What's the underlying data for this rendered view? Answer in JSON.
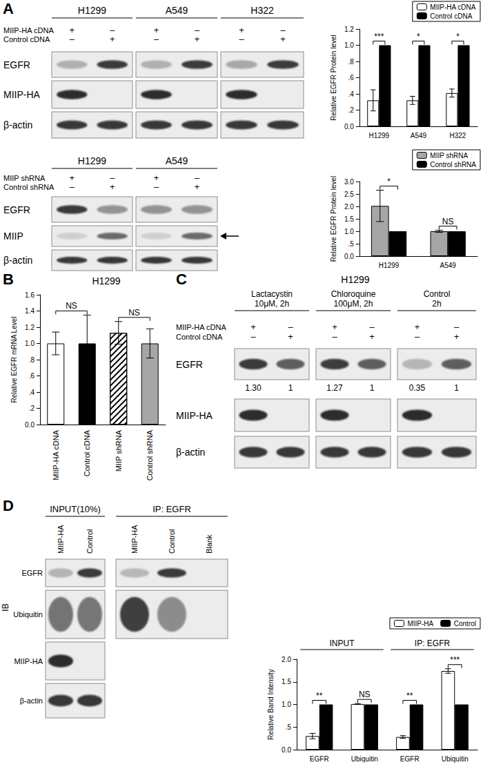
{
  "panel_labels": [
    "A",
    "B",
    "C",
    "D"
  ],
  "chart_data": [
    {
      "type": "bar",
      "categories": [
        "H1299",
        "A549",
        "H322"
      ],
      "series": [
        {
          "name": "MIIP-HA cDNA",
          "color": "#ffffff",
          "values": [
            0.32,
            0.32,
            0.41
          ],
          "errors": [
            0.13,
            0.05,
            0.05
          ]
        },
        {
          "name": "Control cDNA",
          "color": "#000000",
          "values": [
            1,
            1,
            1
          ]
        }
      ],
      "y_label": "Relative EGFR Protein level",
      "ylim": [
        0,
        1.2
      ],
      "yticks": [
        {
          "value": 0,
          "label": "0.0"
        },
        {
          "value": 0.2,
          "label": ".2"
        },
        {
          "value": 0.4,
          "label": ".4"
        },
        {
          "value": 0.6,
          "label": ".6"
        },
        {
          "value": 0.8,
          "label": ".8"
        },
        {
          "value": 1,
          "label": "1.0"
        },
        {
          "value": 1.2,
          "label": "1.2"
        }
      ],
      "grid": false,
      "legend": "upper right",
      "annotations": [
        {
          "category_index": 0,
          "text": "***"
        },
        {
          "category_index": 1,
          "text": "*"
        },
        {
          "category_index": 2,
          "text": "*"
        }
      ]
    },
    {
      "type": "bar",
      "categories": [
        "H1299",
        "A549"
      ],
      "series": [
        {
          "name": "MIIP shRNA",
          "color": "#a6a6a6",
          "values": [
            2.02,
            1.0
          ],
          "errors": [
            0.63,
            0.04
          ]
        },
        {
          "name": "Control shRNA",
          "color": "#000000",
          "values": [
            1,
            1
          ]
        }
      ],
      "y_label": "Relative EGFR Protein level",
      "ylim": [
        0,
        3
      ],
      "yticks": [
        {
          "value": 0,
          "label": "0.0"
        },
        {
          "value": 0.5,
          "label": ".5"
        },
        {
          "value": 1,
          "label": "1.0"
        },
        {
          "value": 1.5,
          "label": "1.5"
        },
        {
          "value": 2,
          "label": "2.0"
        },
        {
          "value": 2.5,
          "label": "2.5"
        },
        {
          "value": 3,
          "label": "3.0"
        }
      ],
      "grid": false,
      "legend": "upper right",
      "annotations": [
        {
          "category_index": 0,
          "text": "*"
        },
        {
          "category_index": 1,
          "text": "NS"
        }
      ]
    },
    {
      "type": "bar",
      "title": "H1299",
      "categories": [
        "MIIP-HA cDNA",
        "Control cDNA",
        "MIIP shRNA",
        "Control shRNA"
      ],
      "values": [
        1.0,
        1.0,
        1.13,
        1.0
      ],
      "errors": [
        0.14,
        0.35,
        0.14,
        0.18
      ],
      "colors": [
        "#ffffff",
        "#000000",
        "#ffffff",
        "#a6a6a6"
      ],
      "y_label": "Relative EGFR mRNA Level",
      "ylim": [
        0,
        1.6
      ],
      "yticks": [
        {
          "value": 0,
          "label": "0.0"
        },
        {
          "value": 0.2,
          "label": ".2"
        },
        {
          "value": 0.4,
          "label": ".4"
        },
        {
          "value": 0.6,
          "label": ".6"
        },
        {
          "value": 0.8,
          "label": ".8"
        },
        {
          "value": 1,
          "label": "1.0"
        },
        {
          "value": 1.2,
          "label": "1.2"
        },
        {
          "value": 1.4,
          "label": "1.4"
        },
        {
          "value": 1.6,
          "label": "1.6"
        }
      ],
      "grid": false,
      "annotations": [
        {
          "span": [
            0,
            1
          ],
          "text": "NS"
        },
        {
          "span": [
            2,
            3
          ],
          "text": "NS"
        }
      ]
    },
    {
      "type": "bar",
      "categories": [
        "EGFR",
        "Ubiquitin",
        "EGFR",
        "Ubiquitin"
      ],
      "groups": [
        {
          "label": "INPUT",
          "span": [
            0,
            1
          ]
        },
        {
          "label": "IP: EGFR",
          "span": [
            2,
            3
          ]
        }
      ],
      "series": [
        {
          "name": "MIIP-HA",
          "color": "#ffffff",
          "values": [
            0.3,
            1.01,
            0.28,
            1.74
          ],
          "errors": [
            0.06,
            0.01,
            0.03,
            0.05
          ]
        },
        {
          "name": "Control",
          "color": "#000000",
          "values": [
            1,
            1,
            1,
            1
          ]
        }
      ],
      "y_label": "Relative Band Intensity",
      "ylim": [
        0,
        2
      ],
      "yticks": [
        {
          "value": 0,
          "label": "0.0"
        },
        {
          "value": 0.5,
          "label": ".5"
        },
        {
          "value": 1,
          "label": "1.0"
        },
        {
          "value": 1.5,
          "label": "1.5"
        },
        {
          "value": 2,
          "label": "2.0"
        }
      ],
      "grid": false,
      "legend": "upper right",
      "annotations": [
        {
          "category_index": 0,
          "text": "**"
        },
        {
          "category_index": 1,
          "text": "NS"
        },
        {
          "category_index": 2,
          "text": "**"
        },
        {
          "category_index": 3,
          "text": "***"
        }
      ]
    }
  ],
  "blots": {
    "A_top": {
      "cell_lines": [
        "H1299",
        "A549",
        "H322"
      ],
      "conditions": [
        {
          "label": "MIIP-HA cDNA",
          "marks": [
            "+",
            "–"
          ]
        },
        {
          "label": "Control cDNA",
          "marks": [
            "–",
            "+"
          ]
        }
      ],
      "rows": [
        "EGFR",
        "MIIP-HA",
        "β-actin"
      ]
    },
    "A_bottom": {
      "cell_lines": [
        "H1299",
        "A549"
      ],
      "conditions": [
        {
          "label": "MIIP shRNA",
          "marks": [
            "+",
            "–"
          ]
        },
        {
          "label": "Control shRNA",
          "marks": [
            "–",
            "+"
          ]
        }
      ],
      "rows": [
        "EGFR",
        "MIIP",
        "β-actin"
      ]
    },
    "C": {
      "title": "H1299",
      "treatments": [
        [
          "Lactacystin",
          "10μM, 2h"
        ],
        [
          "Chloroquine",
          "100μM, 2h"
        ],
        [
          "Control",
          "2h"
        ]
      ],
      "conditions": [
        {
          "label": "MIIP-HA cDNA",
          "marks": [
            "+",
            "–"
          ]
        },
        {
          "label": "Control cDNA",
          "marks": [
            "–",
            "+"
          ]
        }
      ],
      "rows": [
        "EGFR",
        "MIIP-HA",
        "β-actin"
      ],
      "values": [
        1.3,
        1,
        1.27,
        1,
        0.35,
        1
      ],
      "value_labels": [
        "1.30",
        "1",
        "1.27",
        "1",
        "0.35",
        "1"
      ]
    },
    "D": {
      "input_title": "INPUT(10%)",
      "ip_title": "IP: EGFR",
      "input_lanes": [
        "MIIP-HA",
        "Control"
      ],
      "ip_lanes": [
        "MIIP-HA",
        "Control",
        "Blank"
      ],
      "rows": [
        "EGFR",
        "Ubiquitin",
        "MIIP-HA",
        "β-actin"
      ],
      "side_label": "IB"
    }
  }
}
